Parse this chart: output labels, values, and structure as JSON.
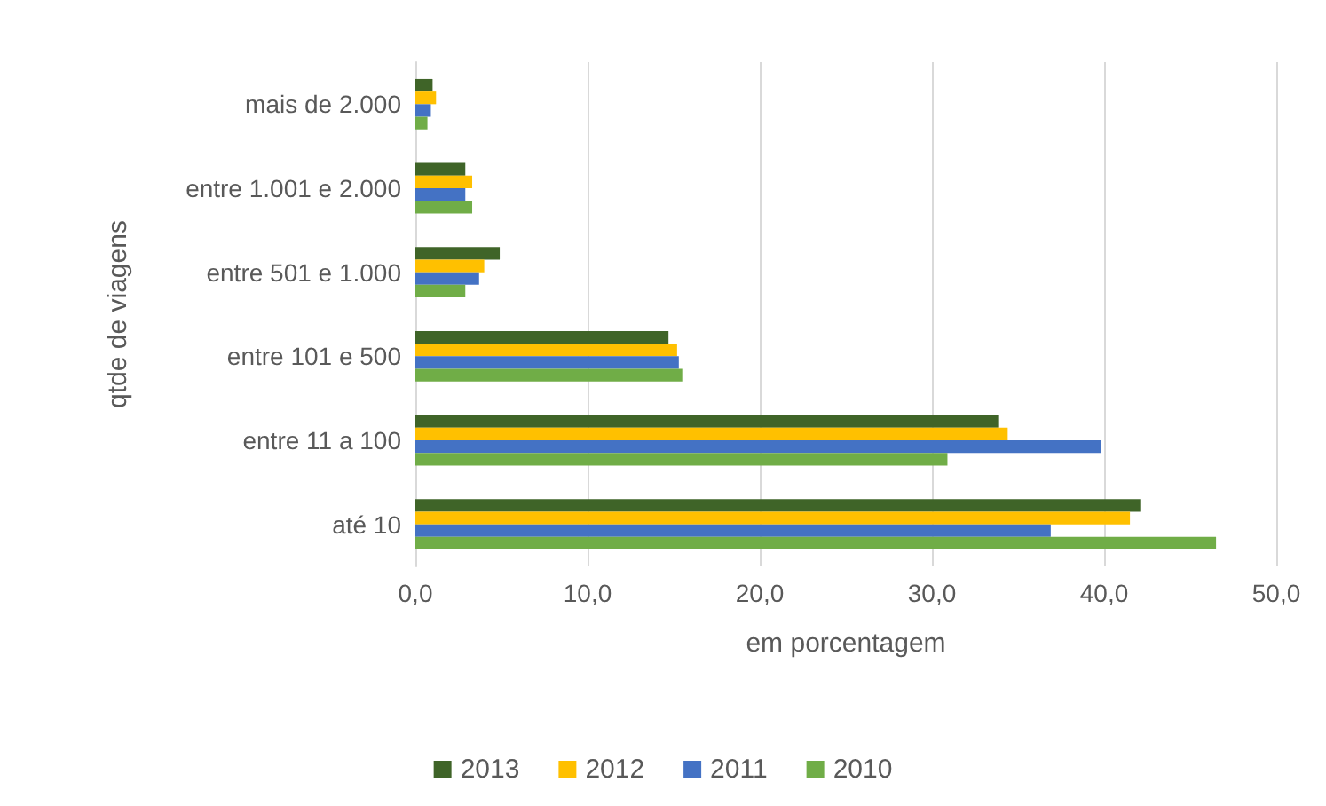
{
  "chart_data": {
    "type": "bar",
    "orientation": "horizontal",
    "xlabel": "em porcentagem",
    "ylabel": "qtde de viagens",
    "categories": [
      "mais de 2.000",
      "entre 1.001 e 2.000",
      "entre 501 e 1.000",
      "entre 101 e 500",
      "entre 11 a 100",
      "até 10"
    ],
    "series": [
      {
        "name": "2013",
        "color": "#3f6428",
        "values": [
          1.0,
          2.9,
          4.9,
          14.7,
          33.9,
          42.1
        ]
      },
      {
        "name": "2012",
        "color": "#ffc000",
        "values": [
          1.2,
          3.3,
          4.0,
          15.2,
          34.4,
          41.5
        ]
      },
      {
        "name": "2011",
        "color": "#4472c4",
        "values": [
          0.9,
          2.9,
          3.7,
          15.3,
          39.8,
          36.9
        ]
      },
      {
        "name": "2010",
        "color": "#70ad47",
        "values": [
          0.7,
          3.3,
          2.9,
          15.5,
          30.9,
          46.5
        ]
      }
    ],
    "xlim": [
      0,
      50
    ],
    "xticks": [
      {
        "value": 0,
        "label": "0,0"
      },
      {
        "value": 10,
        "label": "10,0"
      },
      {
        "value": 20,
        "label": "20,0"
      },
      {
        "value": 30,
        "label": "30,0"
      },
      {
        "value": 40,
        "label": "40,0"
      },
      {
        "value": 50,
        "label": "50,0"
      }
    ],
    "grid": "x",
    "legend": "bottom"
  }
}
